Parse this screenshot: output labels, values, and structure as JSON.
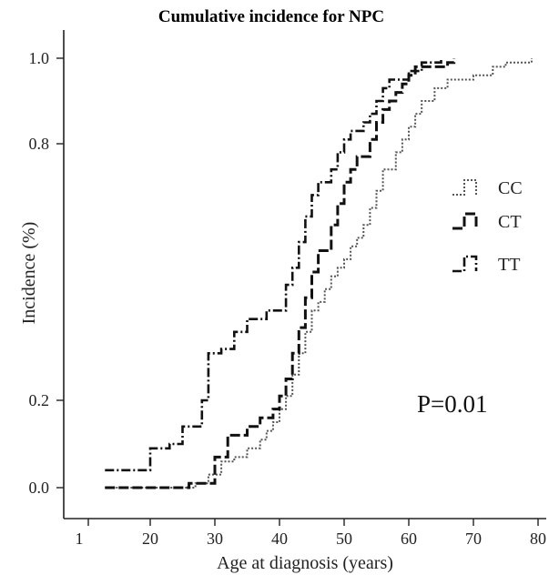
{
  "chart_data": {
    "type": "line",
    "title": "Cumulative incidence for NPC",
    "xlabel": "Age at diagnosis (years)",
    "ylabel": "Incidence (%)",
    "x_ticks": [
      1,
      20,
      30,
      40,
      50,
      60,
      70,
      80
    ],
    "y_ticks": [
      0.0,
      0.2,
      0.8,
      1.0
    ],
    "y_tick_labels": [
      "0.0",
      "0.2",
      "0.8",
      "1.0"
    ],
    "annotation": "P=0.01",
    "legend_position": "right",
    "grid": false,
    "series": [
      {
        "name": "CC",
        "style": "dotted",
        "color": "#555555",
        "steps": [
          [
            13,
            0.0
          ],
          [
            27,
            0.01
          ],
          [
            29,
            0.03
          ],
          [
            31,
            0.06
          ],
          [
            33,
            0.07
          ],
          [
            35,
            0.09
          ],
          [
            37,
            0.11
          ],
          [
            38,
            0.13
          ],
          [
            39,
            0.15
          ],
          [
            40,
            0.18
          ],
          [
            41,
            0.21
          ],
          [
            42,
            0.26
          ],
          [
            43,
            0.31
          ],
          [
            44,
            0.36
          ],
          [
            45,
            0.41
          ],
          [
            46,
            0.43
          ],
          [
            47,
            0.46
          ],
          [
            48,
            0.49
          ],
          [
            49,
            0.51
          ],
          [
            50,
            0.53
          ],
          [
            51,
            0.56
          ],
          [
            52,
            0.58
          ],
          [
            53,
            0.61
          ],
          [
            54,
            0.65
          ],
          [
            55,
            0.69
          ],
          [
            56,
            0.74
          ],
          [
            58,
            0.78
          ],
          [
            59,
            0.81
          ],
          [
            60,
            0.84
          ],
          [
            61,
            0.87
          ],
          [
            62,
            0.9
          ],
          [
            64,
            0.93
          ],
          [
            66,
            0.95
          ],
          [
            70,
            0.96
          ],
          [
            73,
            0.98
          ],
          [
            75,
            0.99
          ],
          [
            79,
            1.0
          ]
        ]
      },
      {
        "name": "CT",
        "style": "dashed",
        "color": "#111111",
        "steps": [
          [
            13,
            0.0
          ],
          [
            26,
            0.01
          ],
          [
            30,
            0.07
          ],
          [
            32,
            0.12
          ],
          [
            35,
            0.14
          ],
          [
            37,
            0.16
          ],
          [
            39,
            0.18
          ],
          [
            40,
            0.21
          ],
          [
            41,
            0.25
          ],
          [
            42,
            0.31
          ],
          [
            43,
            0.37
          ],
          [
            44,
            0.44
          ],
          [
            45,
            0.5
          ],
          [
            46,
            0.55
          ],
          [
            48,
            0.61
          ],
          [
            49,
            0.66
          ],
          [
            50,
            0.71
          ],
          [
            51,
            0.74
          ],
          [
            52,
            0.77
          ],
          [
            54,
            0.81
          ],
          [
            55,
            0.85
          ],
          [
            56,
            0.88
          ],
          [
            57,
            0.9
          ],
          [
            58,
            0.92
          ],
          [
            59,
            0.94
          ],
          [
            60,
            0.96
          ],
          [
            61,
            0.98
          ],
          [
            66,
            0.99
          ],
          [
            67,
            1.0
          ]
        ]
      },
      {
        "name": "TT",
        "style": "dash-dot",
        "color": "#111111",
        "steps": [
          [
            13,
            0.04
          ],
          [
            20,
            0.09
          ],
          [
            23,
            0.1
          ],
          [
            25,
            0.14
          ],
          [
            28,
            0.2
          ],
          [
            29,
            0.31
          ],
          [
            31,
            0.32
          ],
          [
            33,
            0.36
          ],
          [
            35,
            0.39
          ],
          [
            38,
            0.41
          ],
          [
            41,
            0.47
          ],
          [
            42,
            0.51
          ],
          [
            43,
            0.57
          ],
          [
            44,
            0.63
          ],
          [
            45,
            0.68
          ],
          [
            46,
            0.71
          ],
          [
            48,
            0.74
          ],
          [
            49,
            0.78
          ],
          [
            50,
            0.81
          ],
          [
            51,
            0.83
          ],
          [
            53,
            0.85
          ],
          [
            54,
            0.87
          ],
          [
            55,
            0.9
          ],
          [
            56,
            0.93
          ],
          [
            57,
            0.95
          ],
          [
            60,
            0.97
          ],
          [
            62,
            0.99
          ],
          [
            65,
            1.0
          ]
        ]
      }
    ]
  }
}
